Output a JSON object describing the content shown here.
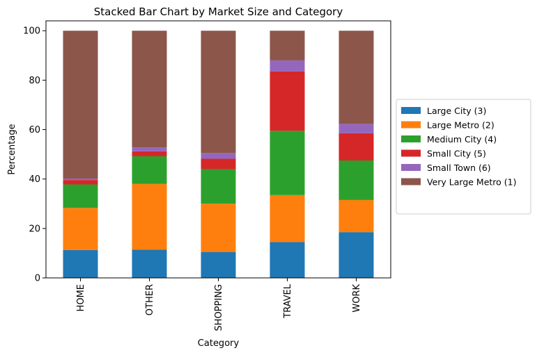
{
  "chart_data": {
    "type": "bar",
    "stacked": true,
    "title": "Stacked Bar Chart by Market Size and Category",
    "xlabel": "Category",
    "ylabel": "Percentage",
    "ylim": [
      0,
      104
    ],
    "yticks": [
      0,
      20,
      40,
      60,
      80,
      100
    ],
    "categories": [
      "HOME",
      "OTHER",
      "SHOPPING",
      "TRAVEL",
      "WORK"
    ],
    "legend_position": "center-right, outside plot",
    "grid": false,
    "series": [
      {
        "name": "Large City (3)",
        "color": "#1f77b4",
        "values": [
          11.3,
          11.4,
          10.5,
          14.5,
          18.5
        ]
      },
      {
        "name": "Large Metro (2)",
        "color": "#ff7f0e",
        "values": [
          17.0,
          26.6,
          19.5,
          19.0,
          13.0
        ]
      },
      {
        "name": "Medium City (4)",
        "color": "#2ca02c",
        "values": [
          9.5,
          11.2,
          14.0,
          26.0,
          16.0
        ]
      },
      {
        "name": "Small City (5)",
        "color": "#d62728",
        "values": [
          1.8,
          2.0,
          4.2,
          24.0,
          11.0
        ]
      },
      {
        "name": "Small Town (6)",
        "color": "#9467bd",
        "values": [
          0.6,
          1.6,
          2.3,
          4.5,
          3.8
        ]
      },
      {
        "name": "Very Large Metro (1)",
        "color": "#8c564b",
        "values": [
          59.8,
          47.2,
          49.5,
          12.0,
          37.7
        ]
      }
    ]
  }
}
